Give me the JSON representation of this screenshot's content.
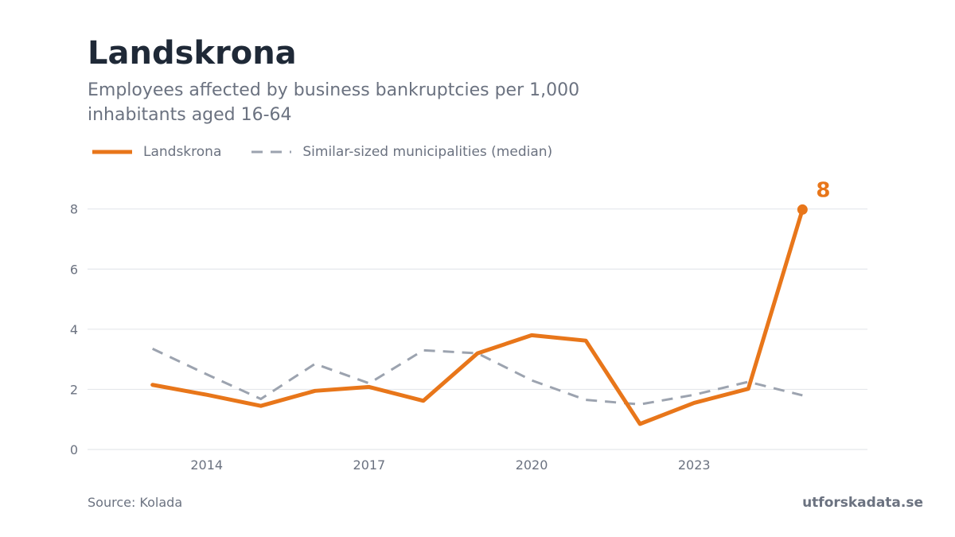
{
  "header": {
    "title": "Landskrona",
    "subtitle": "Employees affected by business bankruptcies per 1,000 inhabitants aged 16-64"
  },
  "footer": {
    "source": "Source: Kolada",
    "brand": "utforskadata.se"
  },
  "colors": {
    "primary": "#e8761a",
    "comparison": "#9ca3af",
    "grid": "#e5e7eb",
    "text": "#6b7280"
  },
  "chart_data": {
    "type": "line",
    "title": "Landskrona",
    "subtitle": "Employees affected by business bankruptcies per 1,000 inhabitants aged 16-64",
    "x": [
      2013,
      2014,
      2015,
      2016,
      2017,
      2018,
      2019,
      2020,
      2021,
      2022,
      2023,
      2024,
      2025
    ],
    "x_ticks": [
      2014,
      2017,
      2020,
      2023
    ],
    "y_ticks": [
      0,
      2,
      4,
      6,
      8
    ],
    "xlim": [
      2011.8,
      2026.2
    ],
    "ylim": [
      0,
      8.6
    ],
    "grid": true,
    "legend": "top-left",
    "series": [
      {
        "name": "Landskrona",
        "style": "solid",
        "color": "#e8761a",
        "values": [
          2.15,
          1.82,
          1.45,
          1.95,
          2.08,
          1.62,
          3.2,
          3.8,
          3.62,
          0.85,
          1.55,
          2.02,
          7.98
        ],
        "end_label": "8"
      },
      {
        "name": "Similar-sized municipalities (median)",
        "style": "dashed",
        "color": "#9ca3af",
        "values": [
          3.35,
          2.5,
          1.68,
          2.85,
          2.2,
          3.3,
          3.2,
          2.3,
          1.65,
          1.5,
          1.82,
          2.25,
          1.8
        ]
      }
    ]
  }
}
